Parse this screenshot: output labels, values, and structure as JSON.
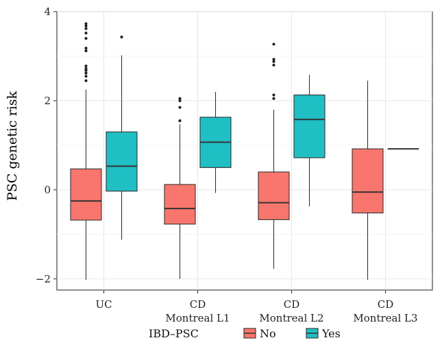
{
  "chart_data": {
    "type": "boxplot",
    "ylabel": "PSC genetic risk",
    "xlabel": "",
    "ylim": [
      -2.25,
      4.0
    ],
    "yticks": [
      -2,
      0,
      2,
      4
    ],
    "grid": true,
    "categories": [
      "UC",
      "CD\nMontreal L1",
      "CD\nMontreal L2",
      "CD\nMontreal L3"
    ],
    "legend": {
      "title": "IBD–PSC",
      "position": "bottom",
      "entries": [
        "No",
        "Yes"
      ]
    },
    "colors": {
      "No": "#f8766d",
      "Yes": "#1fbfc4"
    },
    "series": [
      {
        "name": "No",
        "boxes": [
          {
            "q1": -0.68,
            "median": -0.25,
            "q3": 0.47,
            "whisker_low": -2.02,
            "whisker_high": 2.25,
            "outliers": [
              2.45,
              2.55,
              2.62,
              2.68,
              2.72,
              2.78,
              3.12,
              3.18,
              3.4,
              3.52,
              3.62,
              3.68,
              3.73
            ]
          },
          {
            "q1": -0.77,
            "median": -0.42,
            "q3": 0.12,
            "whisker_low": -2.0,
            "whisker_high": 1.47,
            "outliers": [
              1.55,
              1.85,
              2.0,
              2.05
            ]
          },
          {
            "q1": -0.67,
            "median": -0.29,
            "q3": 0.4,
            "whisker_low": -1.77,
            "whisker_high": 1.8,
            "outliers": [
              2.05,
              2.13,
              2.8,
              2.88,
              2.93,
              3.27
            ]
          },
          {
            "q1": -0.52,
            "median": -0.05,
            "q3": 0.92,
            "whisker_low": -2.02,
            "whisker_high": 2.45,
            "outliers": []
          }
        ]
      },
      {
        "name": "Yes",
        "boxes": [
          {
            "q1": -0.03,
            "median": 0.53,
            "q3": 1.3,
            "whisker_low": -1.12,
            "whisker_high": 3.02,
            "outliers": [
              3.43
            ]
          },
          {
            "q1": 0.5,
            "median": 1.07,
            "q3": 1.63,
            "whisker_low": -0.07,
            "whisker_high": 2.2,
            "outliers": []
          },
          {
            "q1": 0.72,
            "median": 1.58,
            "q3": 2.13,
            "whisker_low": -0.37,
            "whisker_high": 2.58,
            "outliers": []
          },
          {
            "q1": 0.92,
            "median": 0.92,
            "q3": 0.92,
            "whisker_low": 0.92,
            "whisker_high": 0.92,
            "outliers": []
          }
        ]
      }
    ]
  }
}
